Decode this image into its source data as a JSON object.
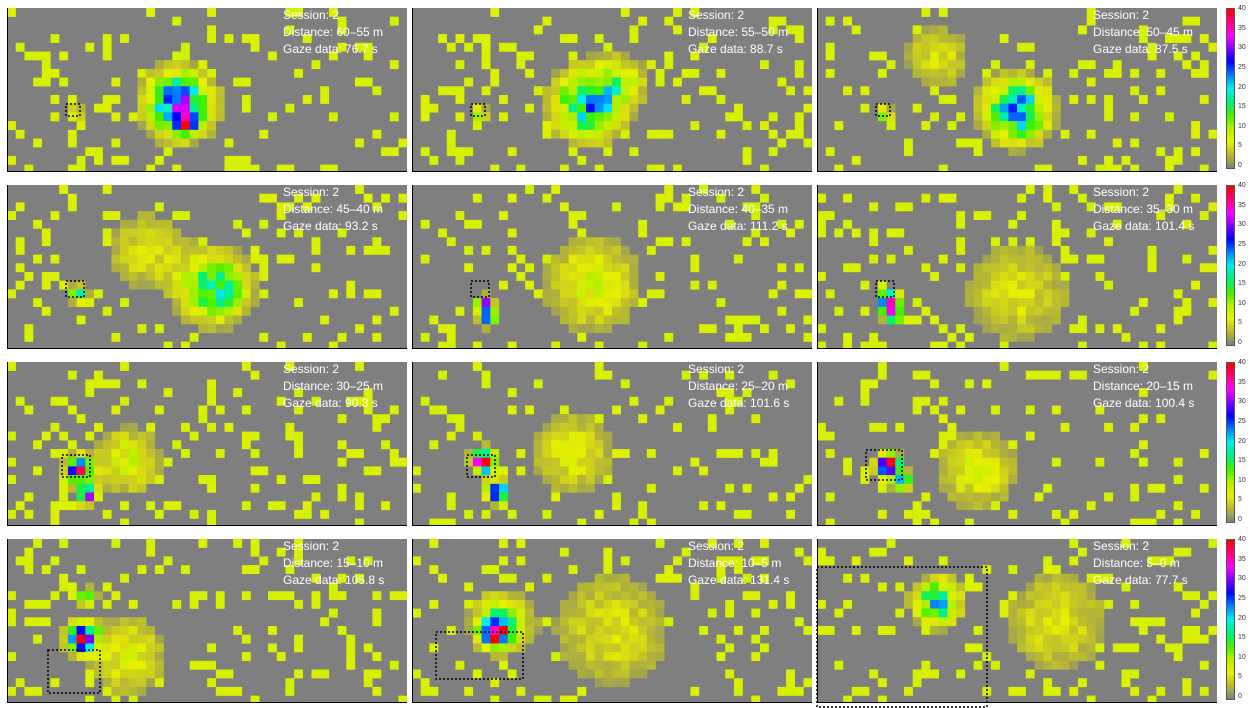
{
  "chart_data": {
    "type": "heatmap",
    "colormap": {
      "min": 0,
      "max": 40,
      "ticks": [
        "40",
        "35",
        "30",
        "25",
        "20",
        "15",
        "10",
        "5",
        "0"
      ],
      "stops": [
        "#808080",
        "#b7b832",
        "#e8f000",
        "#b0f000",
        "#40f000",
        "#00f080",
        "#00f0f0",
        "#0080ff",
        "#0000ff",
        "#8000ff",
        "#ff00ff",
        "#ff0080",
        "#ff0000"
      ]
    },
    "panels": [
      {
        "session": "Session: 2",
        "distance": "Distance: 60–55 m",
        "gaze": "Gaze data: 76.7 s",
        "hotspots": [
          {
            "cx": 0.43,
            "cy": 0.58,
            "r": 0.22,
            "peak": 27
          },
          {
            "cx": 0.17,
            "cy": 0.64,
            "r": 0.05,
            "peak": 14
          },
          {
            "cx": 0.45,
            "cy": 0.7,
            "r": 0.06,
            "peak": 30
          }
        ]
      },
      {
        "session": "Session: 2",
        "distance": "Distance: 55–50 m",
        "gaze": "Gaze data: 88.7 s",
        "hotspots": [
          {
            "cx": 0.44,
            "cy": 0.58,
            "r": 0.24,
            "peak": 20
          },
          {
            "cx": 0.17,
            "cy": 0.64,
            "r": 0.05,
            "peak": 13
          },
          {
            "cx": 0.52,
            "cy": 0.45,
            "r": 0.2,
            "peak": 8
          }
        ]
      },
      {
        "session": "Session: 2",
        "distance": "Distance: 50–45 m",
        "gaze": "Gaze data: 87.5 s",
        "hotspots": [
          {
            "cx": 0.5,
            "cy": 0.62,
            "r": 0.22,
            "peak": 23
          },
          {
            "cx": 0.17,
            "cy": 0.64,
            "r": 0.05,
            "peak": 13
          },
          {
            "cx": 0.3,
            "cy": 0.3,
            "r": 0.25,
            "peak": 6
          }
        ]
      },
      {
        "session": "Session: 2",
        "distance": "Distance: 45–40 m",
        "gaze": "Gaze data: 93.2 s",
        "hotspots": [
          {
            "cx": 0.52,
            "cy": 0.62,
            "r": 0.24,
            "peak": 17
          },
          {
            "cx": 0.18,
            "cy": 0.66,
            "r": 0.06,
            "peak": 22
          },
          {
            "cx": 0.35,
            "cy": 0.4,
            "r": 0.3,
            "peak": 6
          }
        ]
      },
      {
        "session": "Session: 2",
        "distance": "Distance: 40–35 m",
        "gaze": "Gaze data: 111.2 s",
        "hotspots": [
          {
            "cx": 0.18,
            "cy": 0.72,
            "r": 0.05,
            "peak": 40
          },
          {
            "cx": 0.19,
            "cy": 0.8,
            "r": 0.06,
            "peak": 30
          },
          {
            "cx": 0.45,
            "cy": 0.6,
            "r": 0.35,
            "peak": 8
          }
        ]
      },
      {
        "session": "Session: 2",
        "distance": "Distance: 35–30 m",
        "gaze": "Gaze data: 101.4 s",
        "hotspots": [
          {
            "cx": 0.18,
            "cy": 0.7,
            "r": 0.07,
            "peak": 40
          },
          {
            "cx": 0.19,
            "cy": 0.78,
            "r": 0.06,
            "peak": 36
          },
          {
            "cx": 0.5,
            "cy": 0.65,
            "r": 0.4,
            "peak": 6
          }
        ]
      },
      {
        "session": "Session: 2",
        "distance": "Distance: 30–25 m",
        "gaze": "Gaze data: 90.3 s",
        "hotspots": [
          {
            "cx": 0.18,
            "cy": 0.65,
            "r": 0.08,
            "peak": 40
          },
          {
            "cx": 0.2,
            "cy": 0.8,
            "r": 0.07,
            "peak": 28
          },
          {
            "cx": 0.3,
            "cy": 0.6,
            "r": 0.25,
            "peak": 8
          }
        ]
      },
      {
        "session": "Session: 2",
        "distance": "Distance: 25–20 m",
        "gaze": "Gaze data: 101.6 s",
        "hotspots": [
          {
            "cx": 0.18,
            "cy": 0.6,
            "r": 0.08,
            "peak": 40
          },
          {
            "cx": 0.21,
            "cy": 0.78,
            "r": 0.07,
            "peak": 34
          },
          {
            "cx": 0.4,
            "cy": 0.55,
            "r": 0.3,
            "peak": 7
          }
        ]
      },
      {
        "session": "Session: 2",
        "distance": "Distance: 20–15 m",
        "gaze": "Gaze data: 100.4 s",
        "hotspots": [
          {
            "cx": 0.18,
            "cy": 0.63,
            "r": 0.08,
            "peak": 40
          },
          {
            "cx": 0.21,
            "cy": 0.72,
            "r": 0.06,
            "peak": 30
          },
          {
            "cx": 0.4,
            "cy": 0.65,
            "r": 0.3,
            "peak": 7
          }
        ]
      },
      {
        "session": "Session: 2",
        "distance": "Distance: 15–10 m",
        "gaze": "Gaze data: 105.8 s",
        "hotspots": [
          {
            "cx": 0.19,
            "cy": 0.6,
            "r": 0.1,
            "peak": 40
          },
          {
            "cx": 0.2,
            "cy": 0.35,
            "r": 0.06,
            "peak": 20
          },
          {
            "cx": 0.3,
            "cy": 0.7,
            "r": 0.3,
            "peak": 7
          }
        ]
      },
      {
        "session": "Session: 2",
        "distance": "Distance: 10–5 m",
        "gaze": "Gaze data: 131.4 s",
        "hotspots": [
          {
            "cx": 0.21,
            "cy": 0.57,
            "r": 0.1,
            "peak": 35
          },
          {
            "cx": 0.22,
            "cy": 0.5,
            "r": 0.2,
            "peak": 12
          },
          {
            "cx": 0.5,
            "cy": 0.55,
            "r": 0.45,
            "peak": 6
          }
        ]
      },
      {
        "session": "Session: 2",
        "distance": "Distance: 5–0 m",
        "gaze": "Gaze data: 77.7 s",
        "hotspots": [
          {
            "cx": 0.3,
            "cy": 0.38,
            "r": 0.16,
            "peak": 19
          },
          {
            "cx": 0.6,
            "cy": 0.5,
            "r": 0.4,
            "peak": 6
          }
        ]
      }
    ]
  }
}
